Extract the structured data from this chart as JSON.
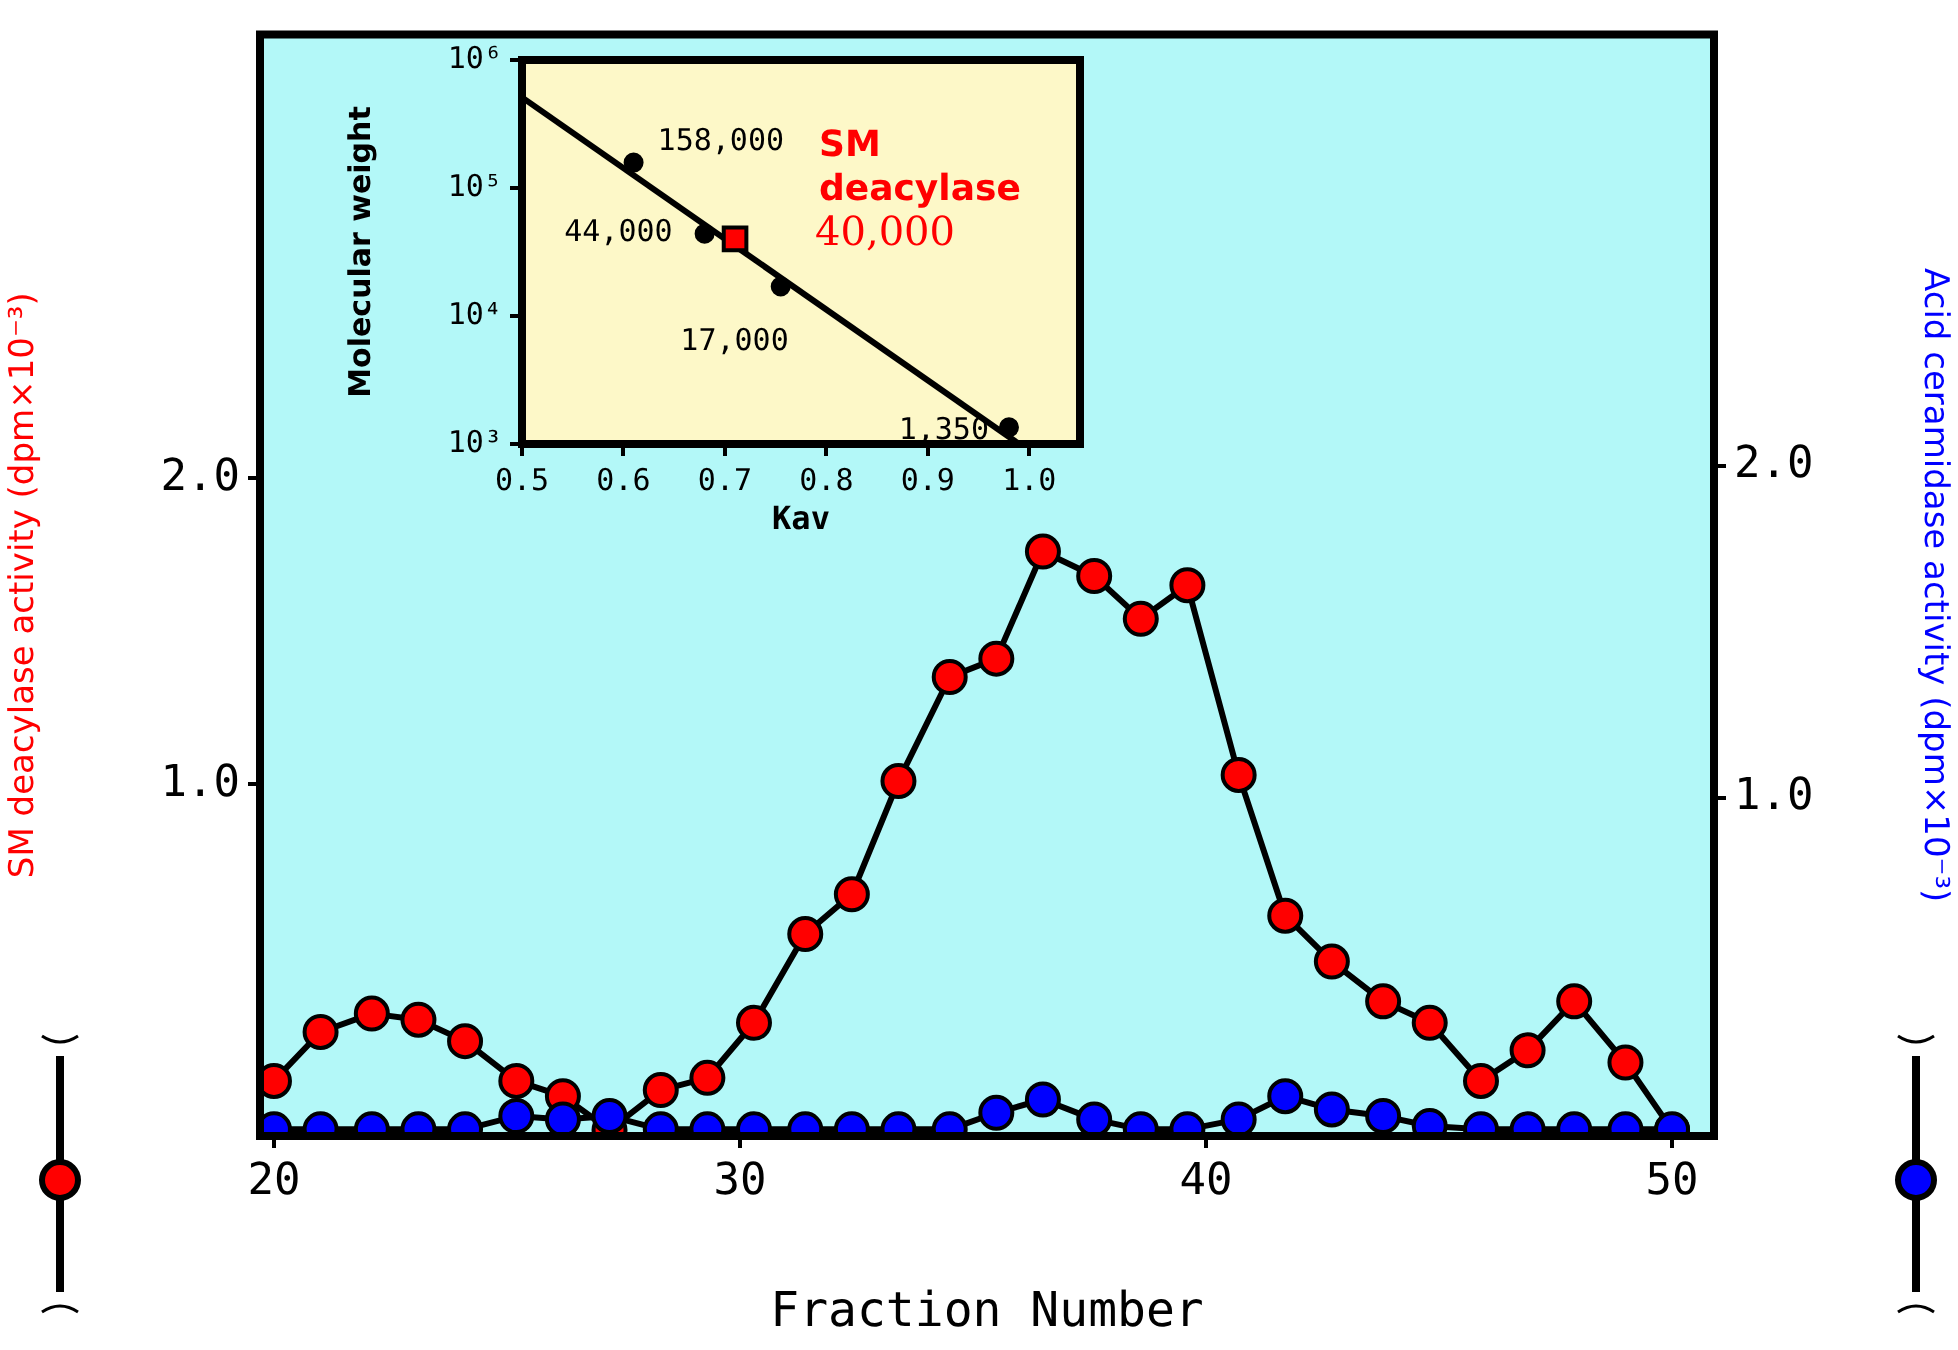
{
  "chart_data": [
    {
      "type": "line",
      "xlabel": "Fraction Number",
      "ylabel": "SM deacylase activity (dpm×10⁻³)",
      "y2label": "Acid ceramidase activity (dpm×10⁻³)",
      "marker": "circle",
      "x": [
        20,
        21,
        22.1,
        23.1,
        24.1,
        25.2,
        26.2,
        27.2,
        28.3,
        29.3,
        30.3,
        31.4,
        32.4,
        33.4,
        34.5,
        35.5,
        36.5,
        37.6,
        38.6,
        39.6,
        40.7,
        41.7,
        42.7,
        43.8,
        44.8,
        45.9,
        46.9,
        47.9,
        49,
        50
      ],
      "series": [
        {
          "color": "#ff0000",
          "values": [
            0.03,
            0.19,
            0.25,
            0.23,
            0.16,
            0.03,
            -0.02,
            -0.13,
            0.0,
            0.04,
            0.22,
            0.51,
            0.64,
            1.01,
            1.35,
            1.41,
            1.76,
            1.68,
            1.54,
            1.65,
            1.03,
            0.57,
            0.42,
            0.29,
            0.22,
            0.03,
            0.13,
            0.29,
            0.09,
            -0.13
          ]
        },
        {
          "color": "#0000ff",
          "axis": "y2",
          "values": [
            0,
            0,
            0,
            0,
            0,
            0.04,
            0.03,
            0.04,
            0,
            0,
            0,
            0,
            0,
            0,
            0,
            0.05,
            0.09,
            0.03,
            0,
            0,
            0.03,
            0.1,
            0.06,
            0.04,
            0.01,
            0,
            0,
            0,
            0,
            0
          ]
        }
      ],
      "xlim": [
        19.7,
        50.9
      ],
      "xticks": [
        20,
        30,
        40,
        50
      ],
      "ylim": [
        -0.15,
        3.45
      ],
      "yticks": [
        {
          "value": 1,
          "label": "1.0"
        },
        {
          "value": 2,
          "label": "2.0"
        }
      ],
      "y2lim": [
        -0.02,
        3.3
      ],
      "y2ticks": [
        {
          "value": 1,
          "label": "1.0"
        },
        {
          "value": 2,
          "label": "2.0"
        }
      ]
    },
    {
      "type": "scatter",
      "xlabel": "Kav",
      "ylabel": "Molecular weight",
      "log": "y",
      "series": [
        {
          "type": "line",
          "color": "#000000",
          "marker": "none",
          "x": [
            0.5,
            0.99
          ],
          "values": [
            510000,
            1000
          ]
        },
        {
          "color": "#000000",
          "marker": "circle",
          "x": [
            0.61,
            0.68,
            0.755,
            0.98
          ],
          "values": [
            158000,
            44000,
            17000,
            1350
          ],
          "value_labels": [
            "158,000",
            "44,000",
            "17,000",
            "1,350"
          ]
        },
        {
          "color": "#ff0000",
          "marker": "square",
          "x": [
            0.71
          ],
          "values": [
            40000
          ],
          "value_labels": [
            "40,000"
          ]
        }
      ],
      "annotations": [
        {
          "text": "SM deacylase",
          "x": 0.71,
          "y": 40000
        }
      ],
      "xlim": [
        0.5,
        1.05
      ],
      "xticks": [
        {
          "value": 0.5,
          "label": "0.5"
        },
        {
          "value": 0.6,
          "label": "0.6"
        },
        {
          "value": 0.7,
          "label": "0.7"
        },
        {
          "value": 0.8,
          "label": "0.8"
        },
        {
          "value": 0.9,
          "label": "0.9"
        },
        {
          "value": 1,
          "label": "1.0"
        }
      ],
      "ylim": [
        1000,
        1000000
      ],
      "yticks": [
        {
          "value": 1000,
          "label": "10³"
        },
        {
          "value": 10000,
          "label": "10⁴"
        },
        {
          "value": 100000,
          "label": "10⁵"
        },
        {
          "value": 1000000,
          "label": "10⁶"
        }
      ]
    }
  ]
}
